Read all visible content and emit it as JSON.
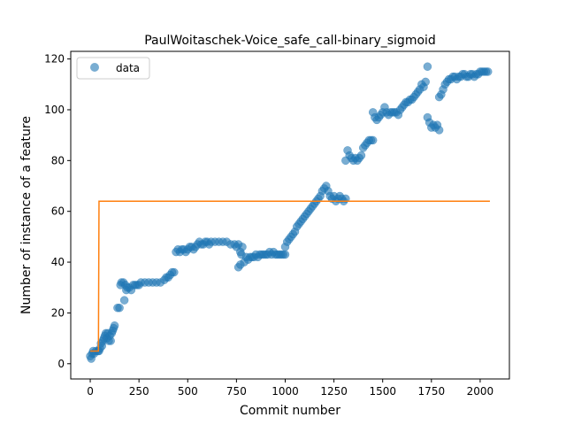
{
  "chart_data": {
    "type": "scatter",
    "title": "PaulWoitaschek-Voice_safe_call-binary_sigmoid",
    "xlabel": "Commit number",
    "ylabel": "Number of instance of a feature",
    "xlim": [
      -100,
      2150
    ],
    "ylim": [
      -6,
      123
    ],
    "xticks": [
      0,
      250,
      500,
      750,
      1000,
      1250,
      1500,
      1750,
      2000
    ],
    "yticks": [
      0,
      20,
      40,
      60,
      80,
      100,
      120
    ],
    "grid": false,
    "legend": {
      "position": "top-left",
      "entries": [
        "data"
      ]
    },
    "colors": {
      "data": "#1f77b4",
      "fit": "#ff7f0e"
    },
    "series": [
      {
        "name": "data",
        "kind": "scatter",
        "points": [
          [
            0,
            3
          ],
          [
            5,
            2
          ],
          [
            10,
            4
          ],
          [
            15,
            5
          ],
          [
            20,
            4
          ],
          [
            30,
            5
          ],
          [
            40,
            5
          ],
          [
            45,
            5
          ],
          [
            50,
            6
          ],
          [
            55,
            8
          ],
          [
            60,
            7
          ],
          [
            65,
            9
          ],
          [
            70,
            10
          ],
          [
            75,
            11
          ],
          [
            80,
            12
          ],
          [
            85,
            10
          ],
          [
            90,
            12
          ],
          [
            95,
            9
          ],
          [
            100,
            11
          ],
          [
            105,
            9
          ],
          [
            110,
            12
          ],
          [
            115,
            13
          ],
          [
            120,
            14
          ],
          [
            125,
            15
          ],
          [
            140,
            22
          ],
          [
            150,
            22
          ],
          [
            155,
            31
          ],
          [
            160,
            32
          ],
          [
            170,
            32
          ],
          [
            175,
            25
          ],
          [
            180,
            31
          ],
          [
            185,
            29
          ],
          [
            190,
            30
          ],
          [
            200,
            30
          ],
          [
            210,
            29
          ],
          [
            220,
            31
          ],
          [
            230,
            31
          ],
          [
            240,
            31
          ],
          [
            250,
            31
          ],
          [
            260,
            32
          ],
          [
            280,
            32
          ],
          [
            300,
            32
          ],
          [
            320,
            32
          ],
          [
            340,
            32
          ],
          [
            360,
            32
          ],
          [
            380,
            33
          ],
          [
            390,
            34
          ],
          [
            400,
            34
          ],
          [
            410,
            35
          ],
          [
            420,
            36
          ],
          [
            430,
            36
          ],
          [
            440,
            44
          ],
          [
            450,
            45
          ],
          [
            460,
            44
          ],
          [
            470,
            45
          ],
          [
            480,
            45
          ],
          [
            490,
            44
          ],
          [
            500,
            45
          ],
          [
            510,
            46
          ],
          [
            520,
            46
          ],
          [
            530,
            45
          ],
          [
            540,
            46
          ],
          [
            550,
            47
          ],
          [
            560,
            48
          ],
          [
            570,
            47
          ],
          [
            580,
            47
          ],
          [
            590,
            48
          ],
          [
            600,
            48
          ],
          [
            610,
            47
          ],
          [
            620,
            48
          ],
          [
            640,
            48
          ],
          [
            660,
            48
          ],
          [
            680,
            48
          ],
          [
            700,
            48
          ],
          [
            720,
            47
          ],
          [
            740,
            47
          ],
          [
            750,
            46
          ],
          [
            760,
            47
          ],
          [
            770,
            44
          ],
          [
            775,
            43
          ],
          [
            780,
            46
          ],
          [
            760,
            38
          ],
          [
            770,
            39
          ],
          [
            790,
            40
          ],
          [
            800,
            42
          ],
          [
            810,
            41
          ],
          [
            820,
            42
          ],
          [
            830,
            42
          ],
          [
            840,
            42
          ],
          [
            850,
            43
          ],
          [
            860,
            42
          ],
          [
            870,
            43
          ],
          [
            880,
            43
          ],
          [
            890,
            43
          ],
          [
            900,
            43
          ],
          [
            910,
            43
          ],
          [
            920,
            44
          ],
          [
            930,
            43
          ],
          [
            940,
            44
          ],
          [
            950,
            43
          ],
          [
            960,
            43
          ],
          [
            970,
            43
          ],
          [
            980,
            43
          ],
          [
            990,
            43
          ],
          [
            1000,
            43
          ],
          [
            1000,
            46
          ],
          [
            1010,
            48
          ],
          [
            1020,
            49
          ],
          [
            1030,
            50
          ],
          [
            1040,
            51
          ],
          [
            1050,
            52
          ],
          [
            1060,
            54
          ],
          [
            1070,
            55
          ],
          [
            1080,
            56
          ],
          [
            1090,
            57
          ],
          [
            1100,
            58
          ],
          [
            1110,
            59
          ],
          [
            1120,
            60
          ],
          [
            1130,
            61
          ],
          [
            1140,
            62
          ],
          [
            1150,
            63
          ],
          [
            1160,
            64
          ],
          [
            1170,
            65
          ],
          [
            1180,
            66
          ],
          [
            1190,
            68
          ],
          [
            1200,
            69
          ],
          [
            1210,
            70
          ],
          [
            1220,
            68
          ],
          [
            1230,
            66
          ],
          [
            1240,
            65
          ],
          [
            1250,
            66
          ],
          [
            1260,
            64
          ],
          [
            1270,
            65
          ],
          [
            1280,
            66
          ],
          [
            1290,
            65
          ],
          [
            1300,
            64
          ],
          [
            1310,
            65
          ],
          [
            1310,
            80
          ],
          [
            1320,
            84
          ],
          [
            1330,
            82
          ],
          [
            1340,
            81
          ],
          [
            1350,
            80
          ],
          [
            1360,
            81
          ],
          [
            1370,
            80
          ],
          [
            1380,
            81
          ],
          [
            1390,
            82
          ],
          [
            1400,
            85
          ],
          [
            1410,
            86
          ],
          [
            1420,
            87
          ],
          [
            1430,
            88
          ],
          [
            1440,
            88
          ],
          [
            1450,
            88
          ],
          [
            1450,
            99
          ],
          [
            1460,
            97
          ],
          [
            1470,
            96
          ],
          [
            1480,
            97
          ],
          [
            1490,
            98
          ],
          [
            1500,
            99
          ],
          [
            1510,
            101
          ],
          [
            1520,
            99
          ],
          [
            1530,
            98
          ],
          [
            1540,
            99
          ],
          [
            1550,
            99
          ],
          [
            1560,
            99
          ],
          [
            1570,
            99
          ],
          [
            1580,
            98
          ],
          [
            1590,
            100
          ],
          [
            1600,
            101
          ],
          [
            1610,
            102
          ],
          [
            1620,
            103
          ],
          [
            1630,
            103
          ],
          [
            1640,
            104
          ],
          [
            1650,
            104
          ],
          [
            1660,
            105
          ],
          [
            1670,
            106
          ],
          [
            1680,
            107
          ],
          [
            1690,
            108
          ],
          [
            1700,
            110
          ],
          [
            1710,
            109
          ],
          [
            1720,
            111
          ],
          [
            1730,
            117
          ],
          [
            1730,
            97
          ],
          [
            1740,
            95
          ],
          [
            1750,
            93
          ],
          [
            1760,
            94
          ],
          [
            1770,
            93
          ],
          [
            1780,
            94
          ],
          [
            1790,
            92
          ],
          [
            1790,
            105
          ],
          [
            1800,
            106
          ],
          [
            1810,
            108
          ],
          [
            1820,
            110
          ],
          [
            1830,
            111
          ],
          [
            1840,
            112
          ],
          [
            1850,
            112
          ],
          [
            1860,
            113
          ],
          [
            1870,
            113
          ],
          [
            1880,
            112
          ],
          [
            1890,
            113
          ],
          [
            1900,
            113
          ],
          [
            1910,
            114
          ],
          [
            1920,
            114
          ],
          [
            1930,
            113
          ],
          [
            1940,
            113
          ],
          [
            1950,
            114
          ],
          [
            1960,
            114
          ],
          [
            1970,
            113
          ],
          [
            1980,
            114
          ],
          [
            1990,
            114
          ],
          [
            2000,
            115
          ],
          [
            2010,
            115
          ],
          [
            2020,
            115
          ],
          [
            2030,
            115
          ],
          [
            2040,
            115
          ]
        ]
      },
      {
        "kind": "line",
        "points": [
          [
            0,
            5
          ],
          [
            42,
            5
          ],
          [
            45,
            64
          ],
          [
            2050,
            64
          ]
        ]
      }
    ]
  }
}
